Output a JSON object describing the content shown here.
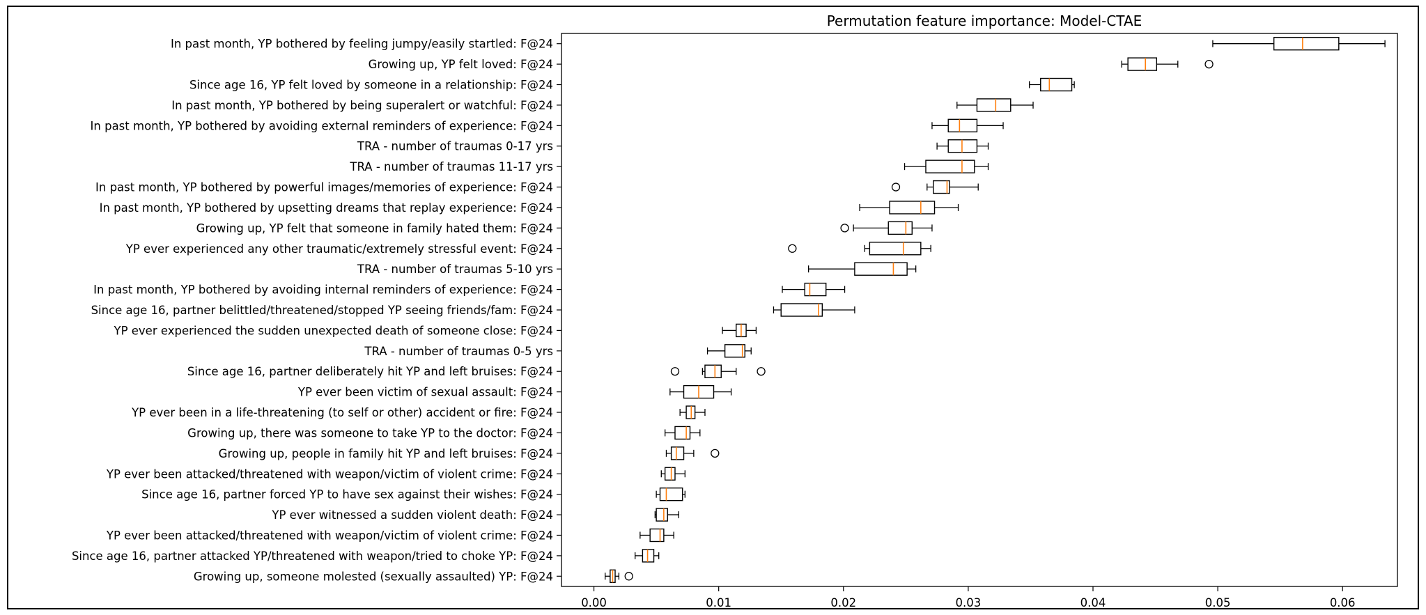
{
  "chart_data": {
    "type": "boxplot",
    "orientation": "horizontal",
    "title": "Permutation feature importance: Model-CTAE",
    "xlabel": "",
    "ylabel": "",
    "xlim": [
      -0.0026,
      0.0644
    ],
    "xticks": [
      0.0,
      0.01,
      0.02,
      0.03,
      0.04,
      0.05,
      0.06
    ],
    "xtick_labels": [
      "0.00",
      "0.01",
      "0.02",
      "0.03",
      "0.04",
      "0.05",
      "0.06"
    ],
    "grid": false,
    "colors": {
      "box": "#000000",
      "median": "#ff7f0e",
      "background": "#ffffff"
    },
    "features": [
      {
        "label": "In past month, YP bothered by feeling jumpy/easily startled: F@24",
        "whisker_low": 0.0496,
        "q1": 0.0545,
        "median": 0.0568,
        "q3": 0.0597,
        "whisker_high": 0.0634,
        "outliers": []
      },
      {
        "label": "Growing up, YP felt loved: F@24",
        "whisker_low": 0.0423,
        "q1": 0.0428,
        "median": 0.0442,
        "q3": 0.0451,
        "whisker_high": 0.0468,
        "outliers": [
          0.0493
        ]
      },
      {
        "label": "Since age 16, YP felt loved by someone in a relationship: F@24",
        "whisker_low": 0.0349,
        "q1": 0.0358,
        "median": 0.0365,
        "q3": 0.0383,
        "whisker_high": 0.0385,
        "outliers": []
      },
      {
        "label": "In past month, YP bothered by being superalert or watchful: F@24",
        "whisker_low": 0.0291,
        "q1": 0.0307,
        "median": 0.0322,
        "q3": 0.0334,
        "whisker_high": 0.0352,
        "outliers": []
      },
      {
        "label": "In past month, YP bothered by avoiding external reminders of experience: F@24",
        "whisker_low": 0.0271,
        "q1": 0.0284,
        "median": 0.0293,
        "q3": 0.0307,
        "whisker_high": 0.0328,
        "outliers": []
      },
      {
        "label": "TRA - number of traumas 0-17 yrs",
        "whisker_low": 0.0275,
        "q1": 0.0284,
        "median": 0.0295,
        "q3": 0.0307,
        "whisker_high": 0.0316,
        "outliers": []
      },
      {
        "label": "TRA - number of traumas 11-17 yrs",
        "whisker_low": 0.0249,
        "q1": 0.0266,
        "median": 0.0295,
        "q3": 0.0305,
        "whisker_high": 0.0316,
        "outliers": []
      },
      {
        "label": "In past month, YP bothered by powerful images/memories of experience: F@24",
        "whisker_low": 0.0267,
        "q1": 0.0272,
        "median": 0.0283,
        "q3": 0.0285,
        "whisker_high": 0.0308,
        "outliers": [
          0.0242
        ]
      },
      {
        "label": "In past month, YP bothered by upsetting dreams that replay experience: F@24",
        "whisker_low": 0.0213,
        "q1": 0.0237,
        "median": 0.0262,
        "q3": 0.0273,
        "whisker_high": 0.0292,
        "outliers": []
      },
      {
        "label": "Growing up, YP felt that someone in family hated them: F@24",
        "whisker_low": 0.0208,
        "q1": 0.0236,
        "median": 0.025,
        "q3": 0.0255,
        "whisker_high": 0.0271,
        "outliers": [
          0.0201
        ]
      },
      {
        "label": "YP ever experienced any other traumatic/extremely stressful event: F@24",
        "whisker_low": 0.0217,
        "q1": 0.0221,
        "median": 0.0248,
        "q3": 0.0262,
        "whisker_high": 0.027,
        "outliers": [
          0.0159
        ]
      },
      {
        "label": "TRA - number of traumas 5-10 yrs",
        "whisker_low": 0.0172,
        "q1": 0.0209,
        "median": 0.024,
        "q3": 0.0251,
        "whisker_high": 0.0258,
        "outliers": []
      },
      {
        "label": "In past month, YP bothered by avoiding internal reminders of experience: F@24",
        "whisker_low": 0.0151,
        "q1": 0.0169,
        "median": 0.0173,
        "q3": 0.0186,
        "whisker_high": 0.0201,
        "outliers": []
      },
      {
        "label": "Since age 16, partner belittled/threatened/stopped YP seeing friends/fam: F@24",
        "whisker_low": 0.0144,
        "q1": 0.015,
        "median": 0.018,
        "q3": 0.0183,
        "whisker_high": 0.0209,
        "outliers": []
      },
      {
        "label": "YP ever experienced the sudden unexpected death of someone close: F@24",
        "whisker_low": 0.0103,
        "q1": 0.0114,
        "median": 0.0118,
        "q3": 0.0122,
        "whisker_high": 0.013,
        "outliers": []
      },
      {
        "label": "TRA - number of traumas 0-5 yrs",
        "whisker_low": 0.0091,
        "q1": 0.0105,
        "median": 0.0119,
        "q3": 0.0121,
        "whisker_high": 0.0126,
        "outliers": []
      },
      {
        "label": "Since age 16, partner deliberately hit YP and left bruises: F@24",
        "whisker_low": 0.0087,
        "q1": 0.0089,
        "median": 0.0097,
        "q3": 0.0102,
        "whisker_high": 0.0114,
        "outliers": [
          0.0065,
          0.0134
        ]
      },
      {
        "label": "YP ever been victim of sexual assault: F@24",
        "whisker_low": 0.0061,
        "q1": 0.0072,
        "median": 0.0084,
        "q3": 0.0096,
        "whisker_high": 0.011,
        "outliers": []
      },
      {
        "label": "YP ever been in a life-threatening (to self or other) accident or fire: F@24",
        "whisker_low": 0.0069,
        "q1": 0.0074,
        "median": 0.0078,
        "q3": 0.0081,
        "whisker_high": 0.0089,
        "outliers": []
      },
      {
        "label": "Growing up, there was someone to take YP to the doctor: F@24",
        "whisker_low": 0.0057,
        "q1": 0.0065,
        "median": 0.0074,
        "q3": 0.0077,
        "whisker_high": 0.0085,
        "outliers": []
      },
      {
        "label": "Growing up, people in family hit YP and left bruises: F@24",
        "whisker_low": 0.0058,
        "q1": 0.0062,
        "median": 0.0066,
        "q3": 0.0072,
        "whisker_high": 0.008,
        "outliers": [
          0.0097
        ]
      },
      {
        "label": "YP ever been attacked/threatened with weapon/victim of violent crime: F@24",
        "whisker_low": 0.0054,
        "q1": 0.0057,
        "median": 0.0062,
        "q3": 0.0065,
        "whisker_high": 0.0073,
        "outliers": []
      },
      {
        "label": "Since age 16, partner forced YP to have sex against their wishes: F@24",
        "whisker_low": 0.005,
        "q1": 0.0053,
        "median": 0.0058,
        "q3": 0.0071,
        "whisker_high": 0.0073,
        "outliers": []
      },
      {
        "label": "YP ever witnessed a sudden violent death: F@24",
        "whisker_low": 0.0049,
        "q1": 0.005,
        "median": 0.0056,
        "q3": 0.0059,
        "whisker_high": 0.0068,
        "outliers": []
      },
      {
        "label": "YP ever been attacked/threatened with weapon/victim of violent crime: F@24",
        "whisker_low": 0.0037,
        "q1": 0.0045,
        "median": 0.0053,
        "q3": 0.0056,
        "whisker_high": 0.0064,
        "outliers": []
      },
      {
        "label": "Since age 16, partner attacked YP/threatened with weapon/tried to choke YP: F@24",
        "whisker_low": 0.0033,
        "q1": 0.0039,
        "median": 0.0043,
        "q3": 0.0048,
        "whisker_high": 0.0052,
        "outliers": []
      },
      {
        "label": "Growing up, someone molested (sexually assaulted) YP: F@24",
        "whisker_low": 0.0009,
        "q1": 0.0013,
        "median": 0.0015,
        "q3": 0.0017,
        "whisker_high": 0.002,
        "outliers": [
          0.0028
        ]
      }
    ]
  }
}
